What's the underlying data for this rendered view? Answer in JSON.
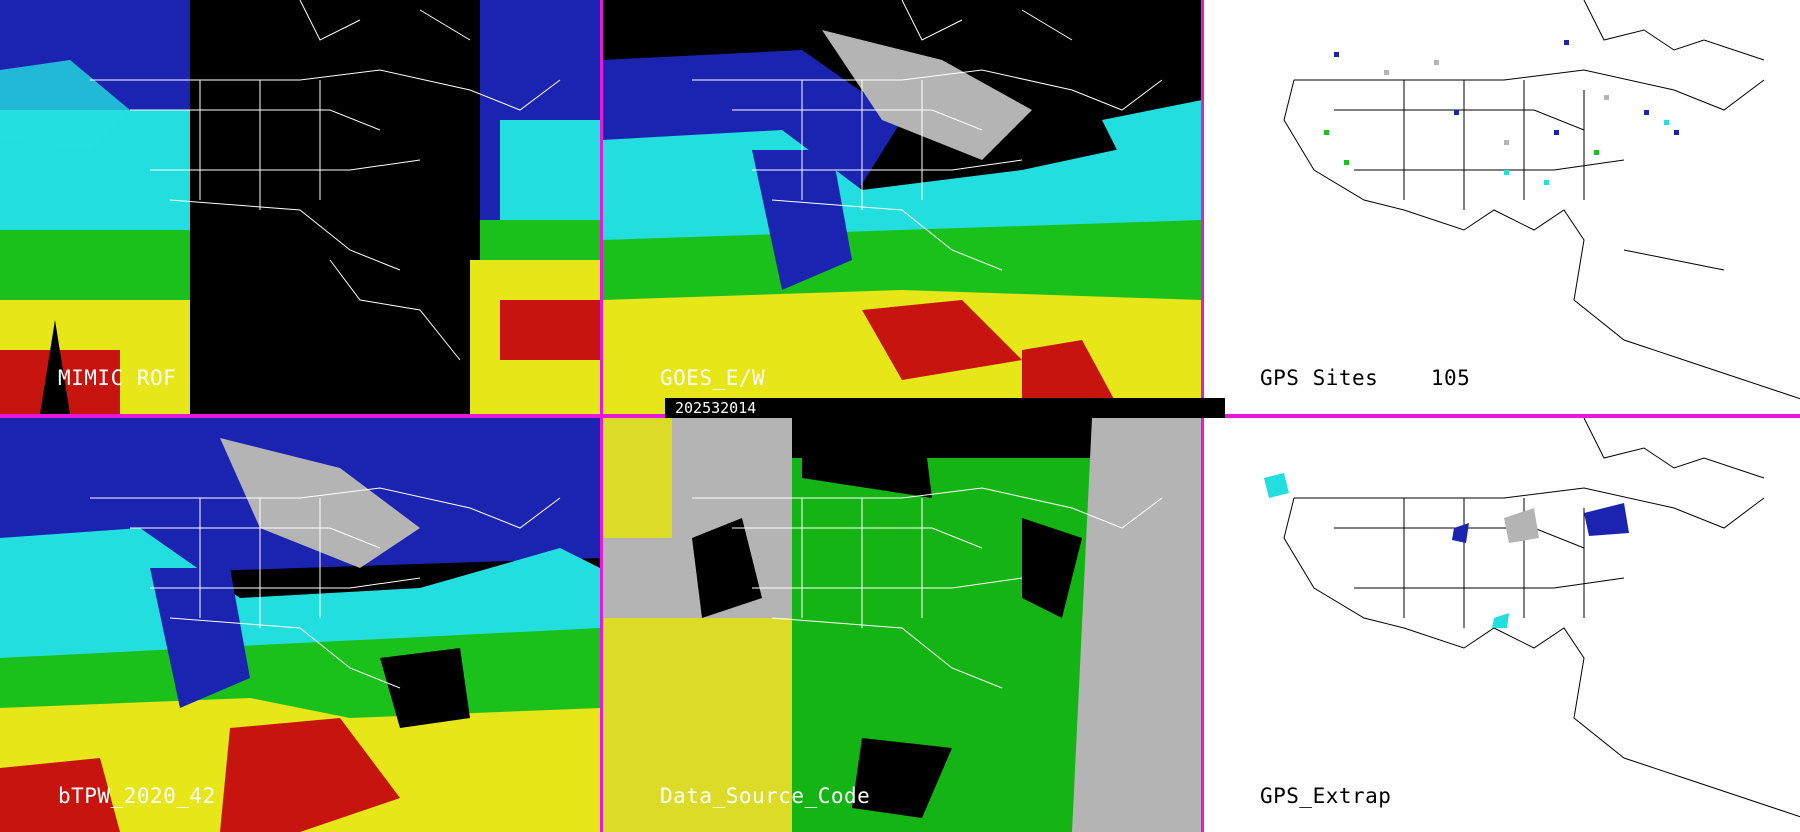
{
  "date_stamp": "202532014",
  "colors": {
    "divider": "#e619d8",
    "band_blue": "#1b24b0",
    "band_cyan": "#23dede",
    "band_green": "#19c11a",
    "band_yellow": "#e6e619",
    "band_red": "#c8140f",
    "gray_cloud": "#b4b4b4",
    "source_yellow": "#dcdc28",
    "source_green": "#14b414",
    "source_gray": "#b4b4b4"
  },
  "panels": [
    {
      "label": "MIMIC ROF"
    },
    {
      "label": "GOES_E/W"
    },
    {
      "label": "GPS Sites    105"
    },
    {
      "label": "bTPW_2020_42"
    },
    {
      "label": "Data_Source_Code"
    },
    {
      "label": "GPS_Extrap"
    }
  ]
}
